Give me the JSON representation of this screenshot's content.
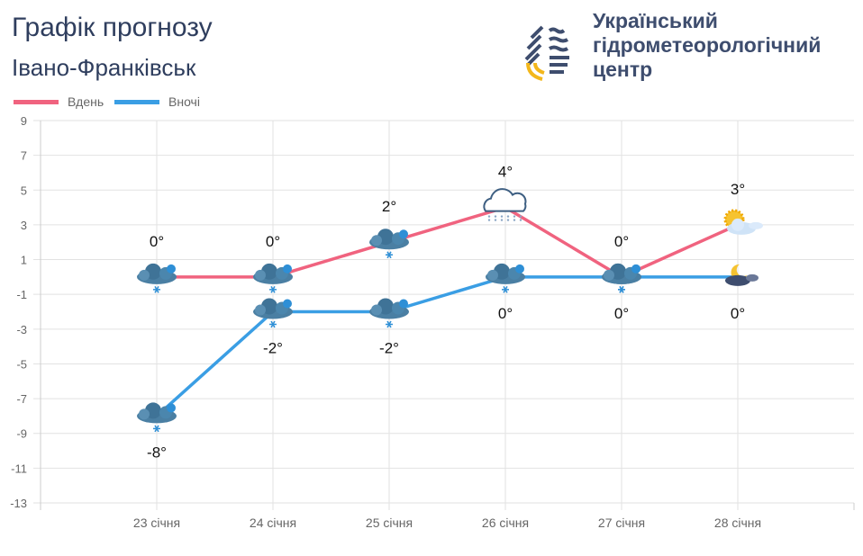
{
  "header": {
    "title": "Графік прогнозу",
    "city": "Івано-Франківськ"
  },
  "logo": {
    "org_lines": [
      "Український",
      "гідрометеорологічний",
      "центр"
    ]
  },
  "colors": {
    "day": "#f0637f",
    "night": "#3a9ee4",
    "grid": "#e2e2e2"
  },
  "chart_data": {
    "type": "line",
    "categories": [
      "23 січня",
      "24 січня",
      "25 січня",
      "26 січня",
      "27 січня",
      "28 січня"
    ],
    "series": [
      {
        "name": "Вдень",
        "values": [
          0,
          0,
          2,
          4,
          0,
          3
        ],
        "labels": [
          "0°",
          "0°",
          "2°",
          "4°",
          "0°",
          "3°"
        ],
        "icons": [
          "snow-cloud-icon",
          "snow-cloud-icon",
          "snow-cloud-icon",
          "cloud-snow-outline-icon",
          "snow-cloud-icon",
          "sun-cloud-icon"
        ]
      },
      {
        "name": "Вночі",
        "values": [
          -8,
          -2,
          -2,
          0,
          0,
          0
        ],
        "labels": [
          "-8°",
          "-2°",
          "-2°",
          "0°",
          "0°",
          "0°"
        ],
        "icons": [
          "snow-cloud-icon",
          "snow-cloud-icon",
          "snow-cloud-icon",
          "snow-cloud-icon",
          "snow-cloud-icon",
          "moon-cloud-icon"
        ]
      }
    ],
    "ylim": [
      -13,
      9
    ],
    "yticks": [
      9,
      7,
      5,
      3,
      1,
      -1,
      -3,
      -5,
      -7,
      -9,
      -11,
      -13
    ],
    "grid": true,
    "legend": "top-left"
  }
}
